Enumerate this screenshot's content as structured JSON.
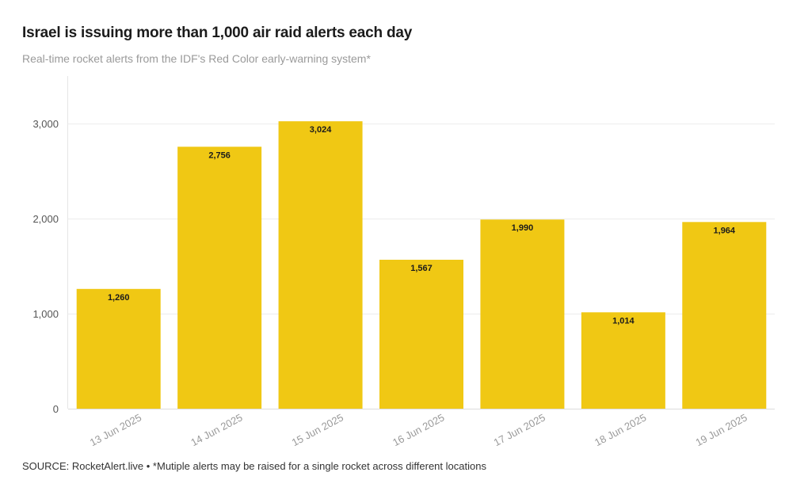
{
  "chart_data": {
    "type": "bar",
    "title": "Israel is issuing more than 1,000 air raid alerts each day",
    "subtitle": "Real-time rocket alerts from the IDF's Red Color early-warning system*",
    "categories": [
      "13 Jun 2025",
      "14 Jun 2025",
      "15 Jun 2025",
      "16 Jun 2025",
      "17 Jun 2025",
      "18 Jun 2025",
      "19 Jun 2025"
    ],
    "values": [
      1260,
      2756,
      3024,
      1567,
      1990,
      1014,
      1964
    ],
    "data_labels": [
      "1,260",
      "2,756",
      "3,024",
      "1,567",
      "1,990",
      "1,014",
      "1,964"
    ],
    "yticks": [
      0,
      1000,
      2000,
      3000
    ],
    "ytick_labels": [
      "0",
      "1,000",
      "2,000",
      "3,000"
    ],
    "ylim": [
      0,
      3500
    ],
    "xlabel": "",
    "ylabel": "",
    "grid": true,
    "legend": "none",
    "bar_color": "#f0c814",
    "source": "SOURCE: RocketAlert.live • *Mutiple alerts may be raised for a single rocket across different locations"
  }
}
